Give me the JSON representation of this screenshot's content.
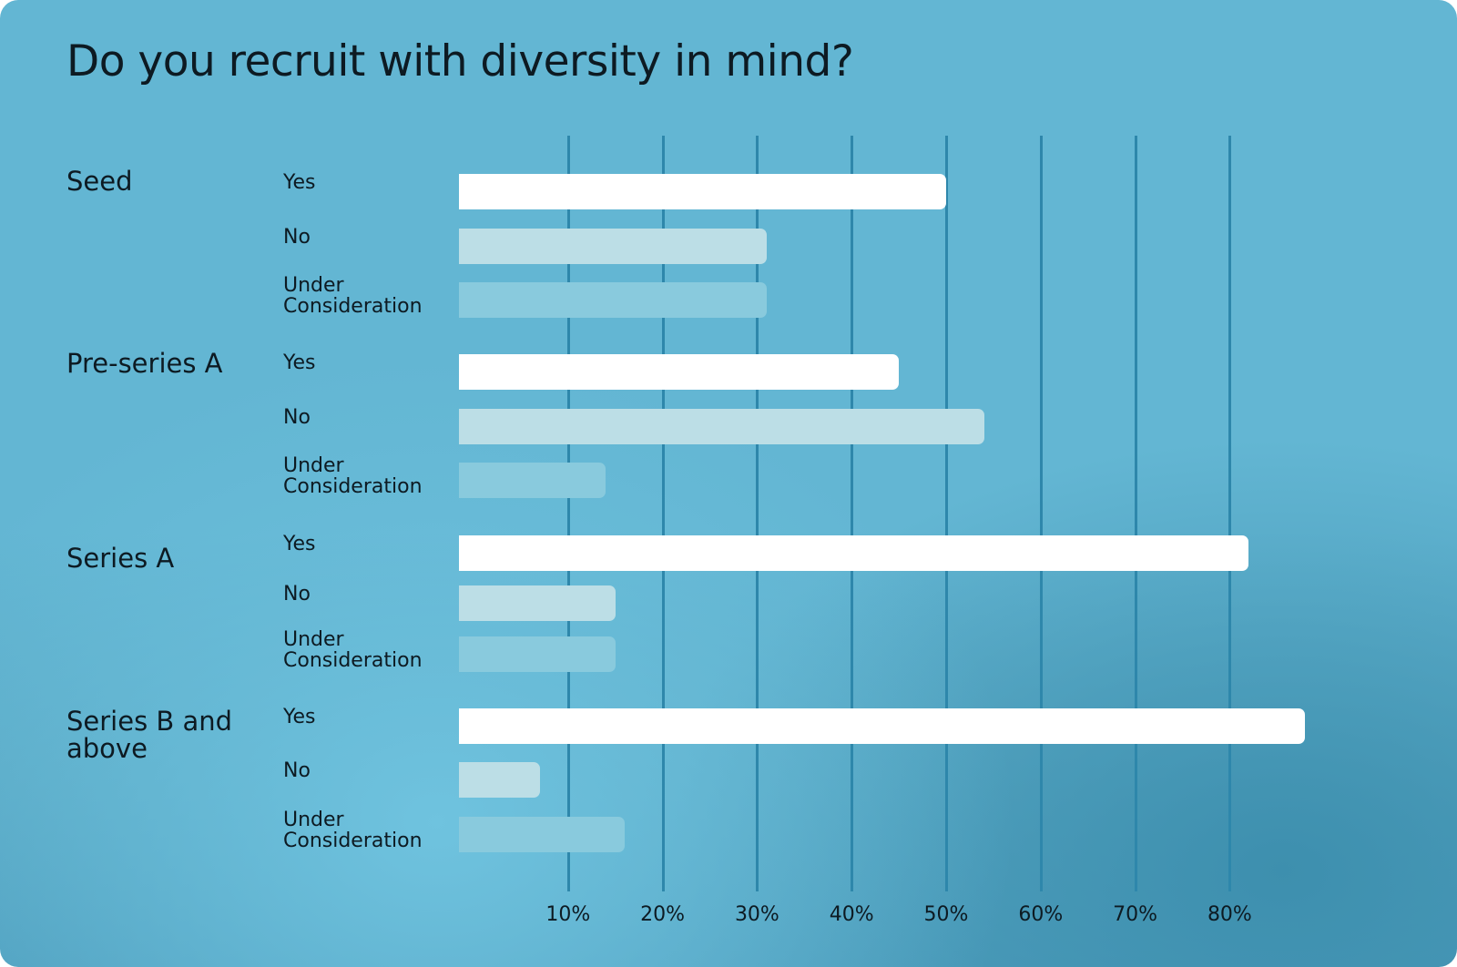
{
  "chart_data": {
    "type": "bar",
    "orientation": "horizontal",
    "title": "Do you recruit with diversity in mind?",
    "groups": [
      "Seed",
      "Pre-series A",
      "Series A",
      "Series B and above"
    ],
    "series": [
      {
        "name": "Yes",
        "color": "#ffffff",
        "values": [
          50,
          45,
          82,
          88
        ]
      },
      {
        "name": "No",
        "color": "#bcdee6",
        "values": [
          31,
          54,
          15,
          7
        ]
      },
      {
        "name": "Under Consideration",
        "color": "#89cadd",
        "values": [
          31,
          14,
          15,
          16
        ]
      }
    ],
    "x_ticks": [
      "10%",
      "20%",
      "30%",
      "40%",
      "50%",
      "60%",
      "70%",
      "80%"
    ],
    "x_tick_values": [
      10,
      20,
      30,
      40,
      50,
      60,
      70,
      80
    ],
    "xlim": [
      0,
      90
    ],
    "grid": "vertical"
  }
}
